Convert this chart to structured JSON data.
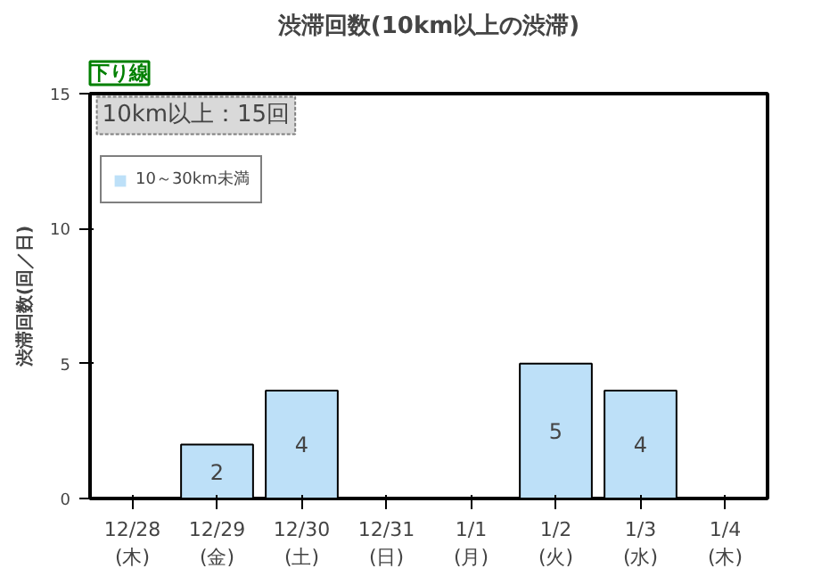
{
  "chart_data": {
    "type": "bar",
    "title": "渋滞回数(10km以上の渋滞)",
    "ylabel": "渋滞回数(回／日)",
    "categories": [
      "12/28\n(木)",
      "12/29\n(金)",
      "12/30\n(土)",
      "12/31\n(日)",
      "1/1\n(月)",
      "1/2\n(火)",
      "1/3\n(水)",
      "1/4\n(木)"
    ],
    "series": [
      {
        "name": "10～30km未満",
        "color": "#bde0f8",
        "values": [
          0,
          2,
          4,
          0,
          0,
          5,
          4,
          0
        ],
        "value_labels": [
          null,
          "2",
          "4",
          null,
          null,
          "5",
          "4",
          null
        ]
      }
    ],
    "ylim": [
      0,
      15
    ],
    "yticks": [
      0,
      5,
      10,
      15
    ],
    "grid": false,
    "legend": "top left",
    "annotations": [
      "下り線",
      "10km以上：15回"
    ]
  }
}
